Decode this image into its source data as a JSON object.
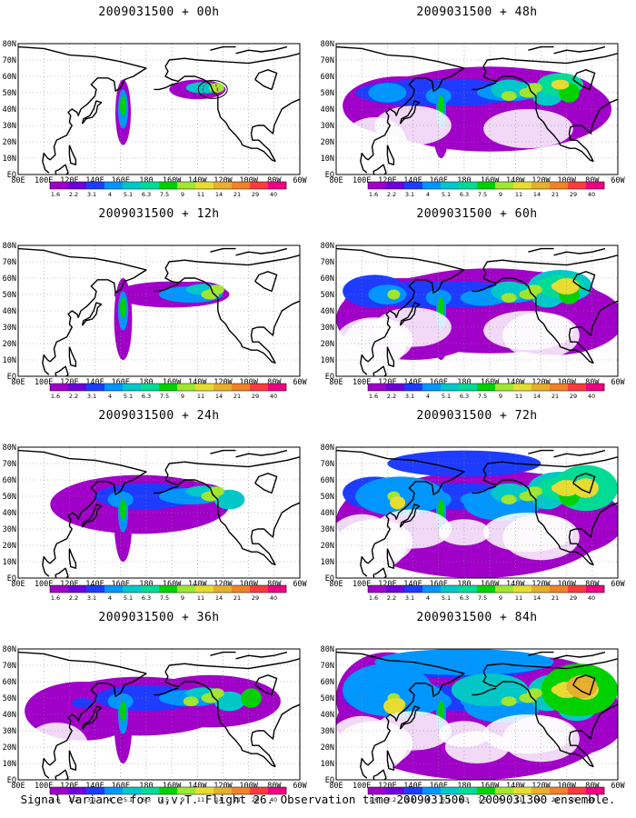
{
  "caption": "Signal Variance for u,v,T. Flight 26. Observation time 2009031500. 2009031300 ensemble.",
  "lat_labels": [
    "80N",
    "70N",
    "60N",
    "50N",
    "40N",
    "30N",
    "20N",
    "10N",
    "EQ"
  ],
  "lon_labels": [
    "80E",
    "100E",
    "120E",
    "140E",
    "160E",
    "180",
    "160W",
    "140W",
    "120W",
    "100W",
    "80W",
    "60W"
  ],
  "legend_labels": [
    "1.6",
    "2.2",
    "3.1",
    "4",
    "5.1",
    "6.3",
    "7.5",
    "9",
    "11",
    "14",
    "21",
    "29",
    "40"
  ],
  "legend_colors": [
    "#a000c8",
    "#6e00dc",
    "#1e3cff",
    "#0096ff",
    "#00c8c8",
    "#00dc96",
    "#00d200",
    "#a0e632",
    "#e6dc32",
    "#e6af2d",
    "#f08228",
    "#fa3c3c",
    "#f00082"
  ],
  "panels": [
    {
      "title": "2009031500 + 00h",
      "level": 0
    },
    {
      "title": "2009031500 + 48h",
      "level": 4
    },
    {
      "title": "2009031500 + 12h",
      "level": 1
    },
    {
      "title": "2009031500 + 60h",
      "level": 5
    },
    {
      "title": "2009031500 + 24h",
      "level": 2
    },
    {
      "title": "2009031500 + 72h",
      "level": 6
    },
    {
      "title": "2009031500 + 36h",
      "level": 3
    },
    {
      "title": "2009031500 + 84h",
      "level": 7
    }
  ]
}
